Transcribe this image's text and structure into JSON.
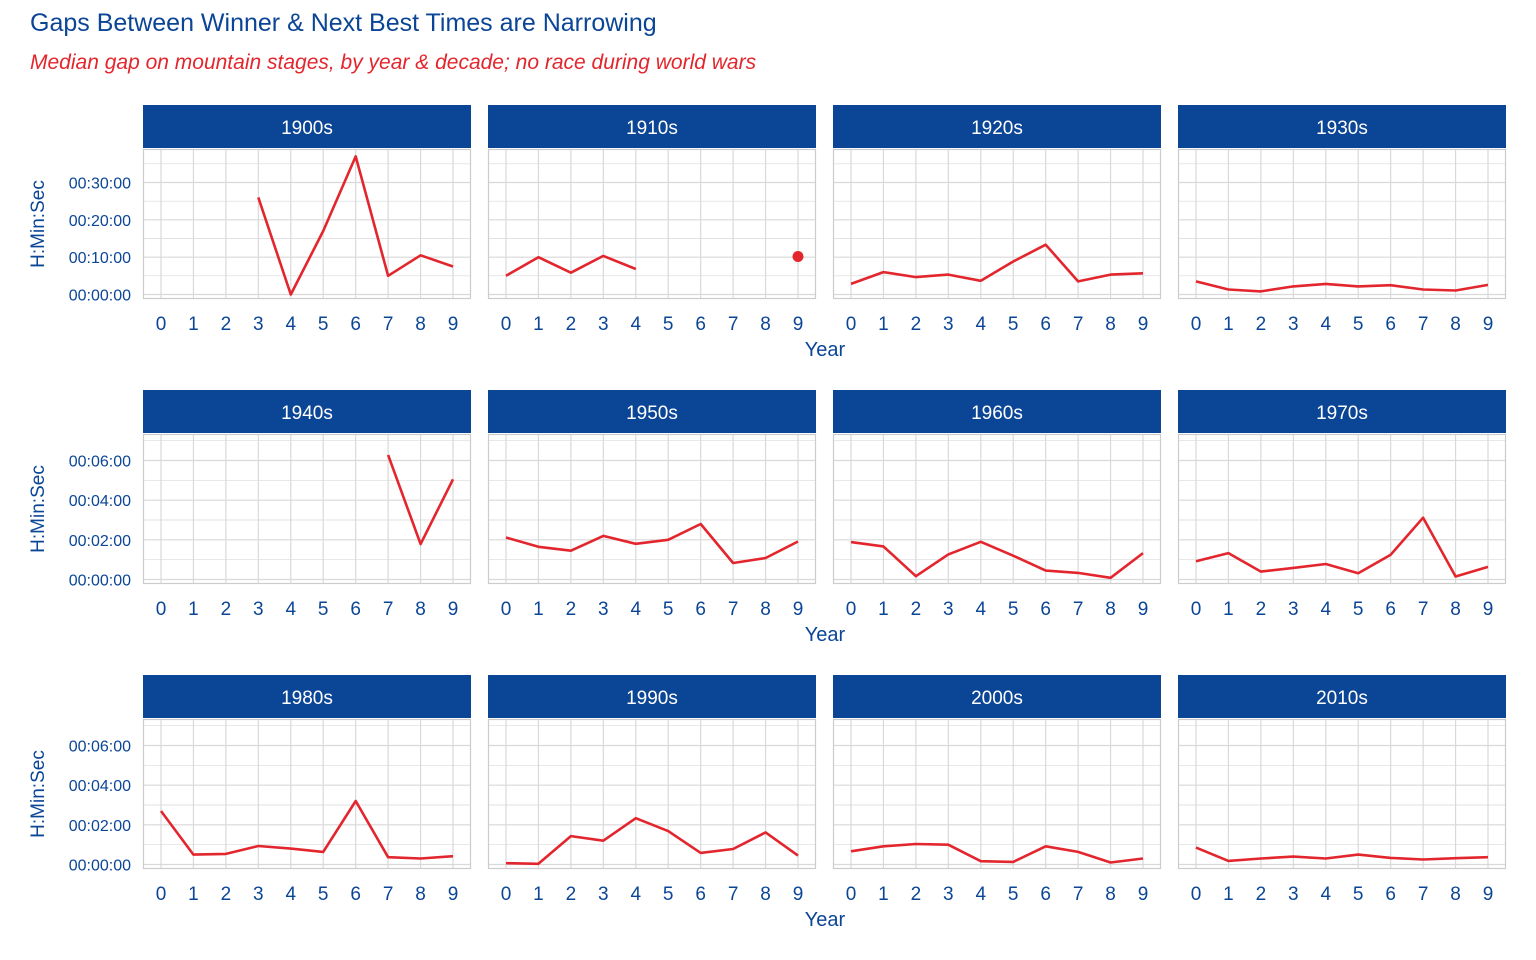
{
  "chart_data": {
    "type": "line",
    "title": "Gaps Between Winner & Next Best Times are Narrowing",
    "subtitle": "Median gap on mountain stages, by year & decade; no race during world wars",
    "xlabel": "Year",
    "ylabel": "H:Min:Sec",
    "x_ticks": [
      0,
      1,
      2,
      3,
      4,
      5,
      6,
      7,
      8,
      9
    ],
    "colors": {
      "line": "#e3262d",
      "strip_bg": "#0b4596",
      "strip_text": "#ffffff",
      "text": "#0b4596",
      "grid": "#d9d9d9",
      "border": "#cccccc"
    },
    "rows": [
      {
        "ylim": [
          0,
          2280
        ],
        "y_ticks": [
          0,
          600,
          1200,
          1800
        ],
        "y_tick_labels": [
          "00:00:00",
          "00:10:00",
          "00:20:00",
          "00:30:00"
        ]
      },
      {
        "ylim": [
          0,
          420
        ],
        "y_ticks": [
          0,
          120,
          240,
          360
        ],
        "y_tick_labels": [
          "00:00:00",
          "00:02:00",
          "00:04:00",
          "00:06:00"
        ]
      },
      {
        "ylim": [
          0,
          420
        ],
        "y_ticks": [
          0,
          120,
          240,
          360
        ],
        "y_tick_labels": [
          "00:00:00",
          "00:02:00",
          "00:04:00",
          "00:06:00"
        ]
      }
    ],
    "panels": [
      {
        "decade": "1900s",
        "row": 0,
        "values": [
          null,
          null,
          null,
          1560,
          0,
          1020,
          2220,
          300,
          630,
          450
        ]
      },
      {
        "decade": "1910s",
        "row": 0,
        "values": [
          300,
          600,
          350,
          620,
          410,
          null,
          null,
          null,
          null,
          610
        ]
      },
      {
        "decade": "1920s",
        "row": 0,
        "values": [
          170,
          360,
          280,
          320,
          220,
          530,
          800,
          210,
          320,
          340
        ]
      },
      {
        "decade": "1930s",
        "row": 0,
        "values": [
          210,
          80,
          50,
          130,
          170,
          130,
          150,
          80,
          65,
          155
        ]
      },
      {
        "decade": "1940s",
        "row": 1,
        "values": [
          null,
          null,
          null,
          null,
          null,
          null,
          null,
          377,
          107,
          303
        ]
      },
      {
        "decade": "1950s",
        "row": 1,
        "values": [
          127,
          99,
          87,
          132,
          108,
          120,
          168,
          50,
          65,
          115
        ]
      },
      {
        "decade": "1960s",
        "row": 1,
        "values": [
          113,
          100,
          10,
          76,
          114,
          72,
          27,
          20,
          5,
          80
        ]
      },
      {
        "decade": "1970s",
        "row": 1,
        "values": [
          55,
          80,
          24,
          35,
          47,
          19,
          75,
          187,
          9,
          38
        ]
      },
      {
        "decade": "1980s",
        "row": 2,
        "values": [
          162,
          30,
          32,
          56,
          48,
          38,
          192,
          22,
          18,
          25
        ]
      },
      {
        "decade": "1990s",
        "row": 2,
        "values": [
          4,
          2,
          86,
          72,
          140,
          101,
          35,
          47,
          97,
          27
        ]
      },
      {
        "decade": "2000s",
        "row": 2,
        "values": [
          40,
          55,
          62,
          60,
          10,
          8,
          55,
          38,
          6,
          18
        ]
      },
      {
        "decade": "2010s",
        "row": 2,
        "values": [
          51,
          11,
          18,
          24,
          18,
          30,
          20,
          15,
          19,
          22
        ]
      }
    ]
  }
}
